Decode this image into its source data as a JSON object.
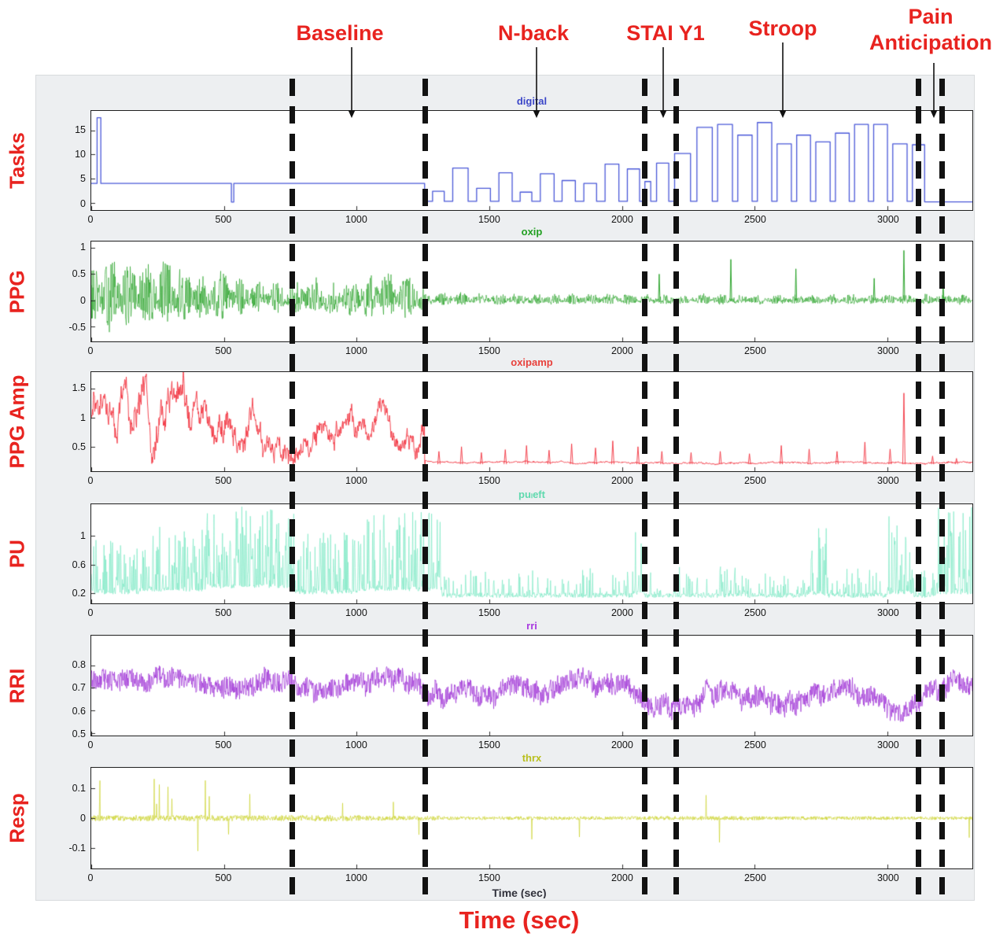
{
  "chart_data": {
    "type": "line",
    "title": "",
    "description": "Six stacked time-series panels: task marker channel and physiological signals (PPG, PPG amplitude, PU, RRI, respiration) recorded across Baseline, N-back, STAI Y1, Stroop and Pain Anticipation task periods, with dashed vertical event boundaries.",
    "xlabel": "Time (sec)",
    "x_range": [
      0,
      3320
    ],
    "x_ticks": [
      0,
      500,
      1000,
      1500,
      2000,
      2500,
      3000
    ],
    "event_lines_sec": [
      760,
      1258,
      2086,
      2204,
      3113,
      3202
    ],
    "label_color": "#e8231f",
    "task_annotations": [
      {
        "label": "Baseline",
        "text_x": 432,
        "arrow_x": 447
      },
      {
        "label": "N-back",
        "text_x": 678,
        "arrow_x": 682
      },
      {
        "label": "STAI Y1",
        "text_x": 846,
        "arrow_x": 843
      },
      {
        "label": "Stroop",
        "text_x": 995,
        "arrow_x": 995
      },
      {
        "label": "Pain Anticipation",
        "text_x": 1183,
        "arrow_x": 1187
      }
    ],
    "panels": [
      {
        "row_label": "Tasks",
        "title": "digital",
        "title_color": "#3b46c8",
        "line_color": "#4a58d8",
        "y_min": -1.5,
        "y_max": 19,
        "y_ticks": [
          0,
          5,
          10,
          15
        ],
        "seed": 7,
        "signal": {
          "type": "steps",
          "steps": [
            [
              0,
              22,
              4
            ],
            [
              22,
              36,
              17.6
            ],
            [
              36,
              528,
              4
            ],
            [
              528,
              537,
              0.15
            ],
            [
              537,
              1256,
              4
            ],
            [
              1256,
              1286,
              0.3
            ],
            [
              1286,
              1330,
              2.4
            ],
            [
              1330,
              1362,
              0.3
            ],
            [
              1362,
              1420,
              7.2
            ],
            [
              1420,
              1452,
              0.3
            ],
            [
              1452,
              1504,
              3
            ],
            [
              1504,
              1536,
              0.3
            ],
            [
              1536,
              1586,
              6.2
            ],
            [
              1586,
              1616,
              0.3
            ],
            [
              1616,
              1660,
              2.2
            ],
            [
              1660,
              1692,
              0.3
            ],
            [
              1692,
              1744,
              6
            ],
            [
              1744,
              1774,
              0.3
            ],
            [
              1774,
              1824,
              4.6
            ],
            [
              1824,
              1856,
              0.3
            ],
            [
              1856,
              1904,
              4
            ],
            [
              1904,
              1936,
              0.3
            ],
            [
              1936,
              1988,
              8
            ],
            [
              1988,
              2020,
              0.3
            ],
            [
              2020,
              2066,
              7
            ],
            [
              2066,
              2086,
              0.3
            ],
            [
              2086,
              2108,
              4.4
            ],
            [
              2108,
              2130,
              0.3
            ],
            [
              2130,
              2176,
              8.2
            ],
            [
              2176,
              2198,
              0.3
            ],
            [
              2198,
              2258,
              10.2
            ],
            [
              2258,
              2282,
              0.3
            ],
            [
              2282,
              2340,
              15.6
            ],
            [
              2340,
              2360,
              0.3
            ],
            [
              2360,
              2416,
              16.2
            ],
            [
              2416,
              2436,
              0.3
            ],
            [
              2436,
              2490,
              14
            ],
            [
              2490,
              2510,
              0.3
            ],
            [
              2510,
              2564,
              16.6
            ],
            [
              2564,
              2584,
              0.3
            ],
            [
              2584,
              2638,
              12.2
            ],
            [
              2638,
              2658,
              0.3
            ],
            [
              2658,
              2710,
              14
            ],
            [
              2710,
              2730,
              0.3
            ],
            [
              2730,
              2784,
              12.6
            ],
            [
              2784,
              2804,
              0.3
            ],
            [
              2804,
              2856,
              14.4
            ],
            [
              2856,
              2876,
              0.3
            ],
            [
              2876,
              2928,
              16.2
            ],
            [
              2928,
              2948,
              0.3
            ],
            [
              2948,
              3000,
              16.2
            ],
            [
              3000,
              3020,
              0.3
            ],
            [
              3020,
              3074,
              12.2
            ],
            [
              3074,
              3094,
              0.3
            ],
            [
              3094,
              3140,
              12
            ],
            [
              3140,
              3320,
              0.2
            ]
          ]
        }
      },
      {
        "row_label": "PPG",
        "title": "oxip",
        "title_color": "#22a022",
        "line_color": "#1f9e1f",
        "y_min": -0.78,
        "y_max": 1.12,
        "y_ticks": [
          -0.5,
          0,
          0.5,
          1
        ],
        "seed": 13,
        "signal": {
          "type": "osc",
          "pos_scale": 1.1,
          "neg_scale": 0.72,
          "envelope": [
            [
              0,
              0.72
            ],
            [
              90,
              0.9
            ],
            [
              200,
              0.8
            ],
            [
              300,
              0.88
            ],
            [
              380,
              0.55
            ],
            [
              480,
              0.62
            ],
            [
              560,
              0.5
            ],
            [
              650,
              0.36
            ],
            [
              760,
              0.4
            ],
            [
              850,
              0.5
            ],
            [
              950,
              0.42
            ],
            [
              1060,
              0.58
            ],
            [
              1150,
              0.5
            ],
            [
              1230,
              0.55
            ],
            [
              1258,
              0.17
            ],
            [
              1500,
              0.14
            ],
            [
              2000,
              0.13
            ],
            [
              2600,
              0.12
            ],
            [
              3100,
              0.12
            ],
            [
              3320,
              0.13
            ]
          ],
          "spikes": [
            [
              2140,
              0.5
            ],
            [
              2410,
              0.78
            ],
            [
              2655,
              0.6
            ],
            [
              2950,
              0.42
            ],
            [
              3062,
              0.95
            ],
            [
              3210,
              0.3
            ]
          ]
        }
      },
      {
        "row_label": "PPG Amp",
        "title": "oxipamp",
        "title_color": "#e8413c",
        "line_color": "#f2333f",
        "y_min": 0.08,
        "y_max": 1.78,
        "y_ticks": [
          0.5,
          1,
          1.5
        ],
        "seed": 29,
        "signal": {
          "type": "walk",
          "segments": [
            [
              0,
              380,
              0.3,
              1.72,
              1.0
            ],
            [
              380,
              560,
              0.3,
              1.5,
              0.9
            ],
            [
              560,
              770,
              0.25,
              1.35,
              0.85
            ],
            [
              770,
              1256,
              0.3,
              1.3,
              0.8
            ],
            [
              1256,
              3320,
              0.16,
              0.3,
              0.25
            ]
          ],
          "spikes": [
            [
              1310,
              0.42
            ],
            [
              1395,
              0.5
            ],
            [
              1470,
              0.4
            ],
            [
              1560,
              0.45
            ],
            [
              1640,
              0.52
            ],
            [
              1725,
              0.44
            ],
            [
              1810,
              0.55
            ],
            [
              1900,
              0.48
            ],
            [
              1965,
              0.6
            ],
            [
              2060,
              0.5
            ],
            [
              2150,
              0.42
            ],
            [
              2260,
              0.4
            ],
            [
              2370,
              0.42
            ],
            [
              2480,
              0.38
            ],
            [
              2600,
              0.52
            ],
            [
              2705,
              0.46
            ],
            [
              2810,
              0.42
            ],
            [
              2915,
              0.58
            ],
            [
              3010,
              0.46
            ],
            [
              3062,
              1.42
            ],
            [
              3170,
              0.34
            ],
            [
              3260,
              0.3
            ]
          ]
        }
      },
      {
        "row_label": "PU",
        "title": "puₗeft",
        "title_color": "#5fd9ae",
        "line_color": "#7de8c4",
        "y_min": 0.05,
        "y_max": 1.45,
        "y_ticks": [
          0.2,
          0.6,
          1
        ],
        "seed": 47,
        "signal": {
          "type": "spiky",
          "segments": [
            [
              0,
              180,
              0.2,
              0.95,
              0.55
            ],
            [
              180,
              430,
              0.24,
              1.15,
              0.6
            ],
            [
              430,
              770,
              0.28,
              1.42,
              0.7
            ],
            [
              770,
              1010,
              0.2,
              1.05,
              0.5
            ],
            [
              1010,
              1320,
              0.24,
              1.35,
              0.6
            ],
            [
              1320,
              2040,
              0.15,
              0.55,
              0.3
            ],
            [
              2040,
              2085,
              0.18,
              1.08,
              0.55
            ],
            [
              2085,
              2390,
              0.15,
              0.6,
              0.3
            ],
            [
              2390,
              2440,
              0.16,
              0.8,
              0.4
            ],
            [
              2440,
              2700,
              0.15,
              0.55,
              0.28
            ],
            [
              2700,
              2770,
              0.18,
              1.12,
              0.5
            ],
            [
              2770,
              3000,
              0.15,
              0.55,
              0.28
            ],
            [
              3000,
              3090,
              0.2,
              1.38,
              0.55
            ],
            [
              3090,
              3190,
              0.15,
              0.6,
              0.3
            ],
            [
              3190,
              3320,
              0.2,
              1.42,
              0.55
            ]
          ]
        }
      },
      {
        "row_label": "RRI",
        "title": "rri",
        "title_color": "#a93be0",
        "line_color": "#a43fd8",
        "y_min": 0.49,
        "y_max": 0.93,
        "y_ticks": [
          0.5,
          0.6,
          0.7,
          0.8
        ],
        "seed": 61,
        "signal": {
          "type": "wander",
          "noise": 0.045,
          "slow": 0.05,
          "means": [
            [
              0,
              0.74
            ],
            [
              200,
              0.7
            ],
            [
              400,
              0.74
            ],
            [
              550,
              0.69
            ],
            [
              700,
              0.73
            ],
            [
              900,
              0.69
            ],
            [
              1050,
              0.74
            ],
            [
              1250,
              0.7
            ],
            [
              1400,
              0.67
            ],
            [
              1550,
              0.71
            ],
            [
              1700,
              0.68
            ],
            [
              1850,
              0.72
            ],
            [
              2000,
              0.68
            ],
            [
              2120,
              0.6
            ],
            [
              2250,
              0.62
            ],
            [
              2400,
              0.7
            ],
            [
              2520,
              0.64
            ],
            [
              2650,
              0.6
            ],
            [
              2800,
              0.7
            ],
            [
              2950,
              0.64
            ],
            [
              3060,
              0.59
            ],
            [
              3160,
              0.65
            ],
            [
              3250,
              0.7
            ],
            [
              3320,
              0.68
            ]
          ]
        }
      },
      {
        "row_label": "Resp",
        "title": "thrx",
        "title_color": "#b9bf1e",
        "line_color": "#ccd32e",
        "y_min": -0.17,
        "y_max": 0.17,
        "y_ticks": [
          -0.1,
          0,
          0.1
        ],
        "seed": 83,
        "signal": {
          "type": "resp",
          "segments": [
            [
              0,
              560,
              0.01,
              0.135,
              0.014
            ],
            [
              560,
              1010,
              0.01,
              0.13,
              0.012
            ],
            [
              1010,
              1320,
              0.008,
              0.1,
              0.007
            ],
            [
              1320,
              2100,
              0.006,
              0.075,
              0.004
            ],
            [
              2100,
              2520,
              0.007,
              0.095,
              0.005
            ],
            [
              2520,
              3320,
              0.006,
              0.075,
              0.0035
            ]
          ]
        }
      }
    ]
  }
}
